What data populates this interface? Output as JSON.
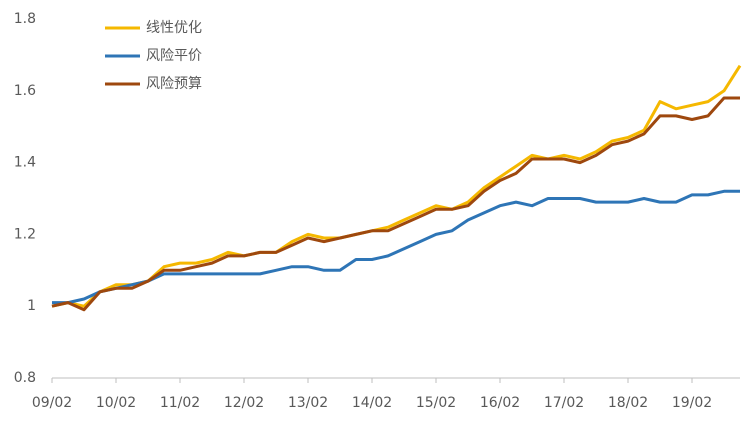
{
  "chart_data": {
    "type": "line",
    "x": [
      "09/02",
      null,
      null,
      null,
      "10/02",
      null,
      null,
      null,
      "11/02",
      null,
      null,
      null,
      "12/02",
      null,
      null,
      null,
      "13/02",
      null,
      null,
      null,
      "14/02",
      null,
      null,
      null,
      "15/02",
      null,
      null,
      null,
      "16/02",
      null,
      null,
      null,
      "17/02",
      null,
      null,
      null,
      "18/02",
      null,
      null,
      null,
      "19/02",
      null,
      null,
      null
    ],
    "series": [
      {
        "name": "线性优化",
        "color": "#f5b800",
        "values": [
          1.0,
          1.01,
          1.0,
          1.04,
          1.06,
          1.06,
          1.07,
          1.11,
          1.12,
          1.12,
          1.13,
          1.15,
          1.14,
          1.15,
          1.15,
          1.18,
          1.2,
          1.19,
          1.19,
          1.2,
          1.21,
          1.22,
          1.24,
          1.26,
          1.28,
          1.27,
          1.29,
          1.33,
          1.36,
          1.39,
          1.42,
          1.41,
          1.42,
          1.41,
          1.43,
          1.46,
          1.47,
          1.49,
          1.57,
          1.55,
          1.56,
          1.57,
          1.6,
          1.67
        ]
      },
      {
        "name": "风险平价",
        "color": "#2e75b6",
        "values": [
          1.01,
          1.01,
          1.02,
          1.04,
          1.05,
          1.06,
          1.07,
          1.09,
          1.09,
          1.09,
          1.09,
          1.09,
          1.09,
          1.09,
          1.1,
          1.11,
          1.11,
          1.1,
          1.1,
          1.13,
          1.13,
          1.14,
          1.16,
          1.18,
          1.2,
          1.21,
          1.24,
          1.26,
          1.28,
          1.29,
          1.28,
          1.3,
          1.3,
          1.3,
          1.29,
          1.29,
          1.29,
          1.3,
          1.29,
          1.29,
          1.31,
          1.31,
          1.32,
          1.32
        ]
      },
      {
        "name": "风险预算",
        "color": "#9e480e",
        "values": [
          1.0,
          1.01,
          0.99,
          1.04,
          1.05,
          1.05,
          1.07,
          1.1,
          1.1,
          1.11,
          1.12,
          1.14,
          1.14,
          1.15,
          1.15,
          1.17,
          1.19,
          1.18,
          1.19,
          1.2,
          1.21,
          1.21,
          1.23,
          1.25,
          1.27,
          1.27,
          1.28,
          1.32,
          1.35,
          1.37,
          1.41,
          1.41,
          1.41,
          1.4,
          1.42,
          1.45,
          1.46,
          1.48,
          1.53,
          1.53,
          1.52,
          1.53,
          1.58,
          1.58
        ]
      }
    ],
    "ylim": [
      0.8,
      1.8
    ],
    "yticks": [
      0.8,
      1,
      1.2,
      1.4,
      1.6,
      1.8
    ],
    "grid": false
  }
}
